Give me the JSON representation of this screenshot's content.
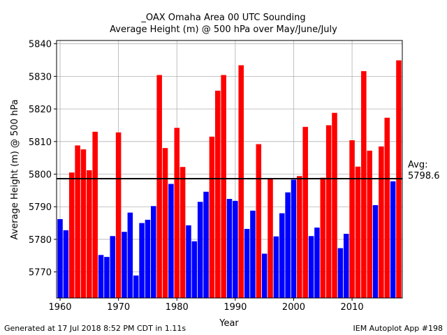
{
  "chart_data": {
    "type": "bar",
    "title": "_OAX Omaha Area  00 UTC Sounding",
    "subtitle": "Average Height (m) @ 500 hPa over May/June/July",
    "xlabel": "Year",
    "ylabel": "Average Height (m) @ 500 hPa",
    "xlim": [
      1959.4,
      2018.6
    ],
    "ylim": [
      5762,
      5841
    ],
    "xticks": [
      1960,
      1970,
      1980,
      1990,
      2000,
      2010
    ],
    "yticks": [
      5770,
      5780,
      5790,
      5800,
      5810,
      5820,
      5830,
      5840
    ],
    "grid": true,
    "average": 5798.6,
    "average_label": "Avg:\n5798.6",
    "average_label_lines": [
      "Avg:",
      "5798.6"
    ],
    "colors": {
      "above": "#ff0000",
      "below": "#0000ff",
      "avg_line": "#000000",
      "grid": "#b0b0b0"
    },
    "years": [
      1960,
      1961,
      1962,
      1963,
      1964,
      1965,
      1966,
      1967,
      1968,
      1969,
      1970,
      1971,
      1972,
      1973,
      1974,
      1975,
      1976,
      1977,
      1978,
      1979,
      1980,
      1981,
      1982,
      1983,
      1984,
      1985,
      1986,
      1987,
      1988,
      1989,
      1990,
      1991,
      1992,
      1993,
      1994,
      1995,
      1996,
      1997,
      1998,
      1999,
      2000,
      2001,
      2002,
      2003,
      2004,
      2005,
      2006,
      2007,
      2008,
      2009,
      2010,
      2011,
      2012,
      2013,
      2014,
      2015,
      2016,
      2017,
      2018
    ],
    "values": [
      5786.2,
      5782.8,
      5800.5,
      5808.8,
      5807.6,
      5801.2,
      5813.0,
      5775.2,
      5774.6,
      5781.0,
      5812.8,
      5782.3,
      5788.2,
      5768.9,
      5785.0,
      5786.0,
      5790.2,
      5830.4,
      5808.0,
      5797.0,
      5814.2,
      5802.2,
      5784.3,
      5779.4,
      5791.5,
      5794.6,
      5811.5,
      5825.6,
      5830.4,
      5792.4,
      5791.8,
      5833.4,
      5783.2,
      5788.8,
      5809.2,
      5775.6,
      5798.6,
      5780.9,
      5788.0,
      5794.4,
      5798.3,
      5799.4,
      5814.5,
      5781.0,
      5783.6,
      5798.9,
      5815.0,
      5818.8,
      5777.3,
      5781.7,
      5810.4,
      5802.3,
      5831.6,
      5807.2,
      5790.5,
      5808.5,
      5817.3,
      5797.8,
      5834.9
    ]
  },
  "footer": {
    "left": "Generated at 17 Jul 2018 8:52 PM CDT in 1.11s",
    "right": "IEM Autoplot App #198"
  }
}
